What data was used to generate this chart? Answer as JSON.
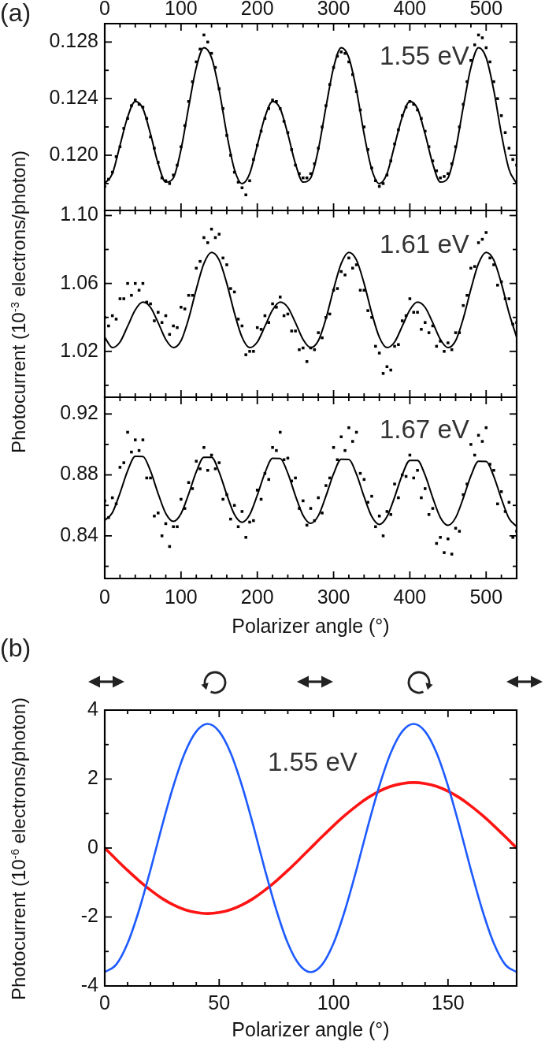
{
  "chart_data": [
    {
      "type": "scatter",
      "annotations": [
        "(a)",
        "1.55 eV"
      ],
      "xlim": [
        0,
        540
      ],
      "x2lim": [
        0,
        540
      ],
      "x2ticks": [
        0,
        {
          "value": 20,
          "label": null
        },
        {
          "value": 40,
          "label": null
        },
        {
          "value": 60,
          "label": null
        },
        {
          "value": 80,
          "label": null
        },
        100,
        {
          "value": 120,
          "label": null
        },
        {
          "value": 140,
          "label": null
        },
        {
          "value": 160,
          "label": null
        },
        {
          "value": 180,
          "label": null
        },
        200,
        {
          "value": 220,
          "label": null
        },
        {
          "value": 240,
          "label": null
        },
        {
          "value": 260,
          "label": null
        },
        {
          "value": 280,
          "label": null
        },
        300,
        {
          "value": 320,
          "label": null
        },
        {
          "value": 340,
          "label": null
        },
        {
          "value": 360,
          "label": null
        },
        {
          "value": 380,
          "label": null
        },
        400,
        {
          "value": 420,
          "label": null
        },
        {
          "value": 440,
          "label": null
        },
        {
          "value": 460,
          "label": null
        },
        {
          "value": 480,
          "label": null
        },
        500,
        {
          "value": 520,
          "label": null
        }
      ],
      "ylim": [
        0.1161,
        0.1293
      ],
      "yticks": [
        {
          "value": 0.118,
          "label": null
        },
        {
          "value": 0.12,
          "label": "0.120"
        },
        {
          "value": 0.122,
          "label": null
        },
        0.124,
        {
          "value": 0.126,
          "label": null
        },
        0.128
      ],
      "marker": "square",
      "series": [
        {
          "type": "scatter",
          "color": "#000000",
          "x": [
            0,
            5,
            10,
            15,
            20,
            25,
            30,
            35,
            40,
            45,
            50,
            55,
            60,
            65,
            70,
            75,
            80,
            85,
            90,
            95,
            100,
            105,
            110,
            115,
            120,
            125,
            130,
            135,
            140,
            145,
            150,
            155,
            160,
            165,
            170,
            175,
            180,
            185,
            190,
            195,
            200,
            205,
            210,
            215,
            220,
            225,
            230,
            235,
            240,
            245,
            250,
            255,
            260,
            265,
            270,
            275,
            280,
            285,
            290,
            295,
            300,
            305,
            310,
            315,
            320,
            325,
            330,
            335,
            340,
            345,
            350,
            355,
            360,
            365,
            370,
            375,
            380,
            385,
            390,
            395,
            400,
            405,
            410,
            415,
            420,
            425,
            430,
            435,
            440,
            445,
            450,
            455,
            460,
            465,
            470,
            475,
            480,
            485,
            490,
            495,
            500,
            505,
            510,
            515,
            520,
            525,
            530,
            535,
            540
          ],
          "values": [
            0.1178,
            0.1183,
            0.1188,
            0.1199,
            0.1206,
            0.1219,
            0.1226,
            0.1235,
            0.1239,
            0.1236,
            0.1234,
            0.1226,
            0.1213,
            0.1205,
            0.1195,
            0.1184,
            0.1182,
            0.118,
            0.1186,
            0.1193,
            0.1206,
            0.1221,
            0.1238,
            0.1252,
            0.1266,
            0.1275,
            0.1285,
            0.128,
            0.1272,
            0.1262,
            0.1247,
            0.1233,
            0.1214,
            0.12,
            0.1188,
            0.1181,
            0.1177,
            0.1172,
            0.1182,
            0.1197,
            0.1207,
            0.1217,
            0.1226,
            0.1233,
            0.1239,
            0.1238,
            0.1233,
            0.1224,
            0.1216,
            0.1204,
            0.1193,
            0.1187,
            0.1184,
            0.1184,
            0.1187,
            0.1194,
            0.1205,
            0.122,
            0.1235,
            0.125,
            0.1262,
            0.127,
            0.1273,
            0.1272,
            0.1266,
            0.1257,
            0.1245,
            0.1232,
            0.122,
            0.1204,
            0.1191,
            0.1182,
            0.1178,
            0.118,
            0.1186,
            0.1196,
            0.1208,
            0.1218,
            0.1228,
            0.1234,
            0.1238,
            0.1236,
            0.1232,
            0.1226,
            0.1217,
            0.1206,
            0.1196,
            0.1189,
            0.1184,
            0.1185,
            0.1187,
            0.1194,
            0.1206,
            0.122,
            0.1236,
            0.1252,
            0.1267,
            0.1278,
            0.1285,
            0.1283,
            0.1276,
            0.1266,
            0.1252,
            0.124,
            0.1228,
            0.1216,
            0.1205,
            0.1197,
            0.1193
          ]
        },
        {
          "type": "line",
          "marker": "none",
          "color": "#000000",
          "x": [
            0,
            10,
            20,
            30,
            40,
            50,
            60,
            70,
            80,
            90,
            100,
            110,
            120,
            130,
            140,
            150,
            160,
            170,
            180,
            190,
            200,
            210,
            220,
            230,
            240,
            250,
            260,
            270,
            280,
            290,
            300,
            310,
            320,
            330,
            340,
            350,
            360,
            370,
            380,
            390,
            400,
            410,
            420,
            430,
            440,
            450,
            460,
            470,
            480,
            490,
            500,
            510,
            520,
            530,
            540
          ],
          "values": [
            0.118,
            0.1187,
            0.1207,
            0.1227,
            0.1238,
            0.1233,
            0.1215,
            0.1194,
            0.1181,
            0.1184,
            0.1204,
            0.1234,
            0.1262,
            0.1276,
            0.1269,
            0.1246,
            0.1215,
            0.119,
            0.118,
            0.1187,
            0.1207,
            0.1227,
            0.1238,
            0.1233,
            0.1215,
            0.1194,
            0.1181,
            0.1184,
            0.1204,
            0.1234,
            0.1262,
            0.1276,
            0.1269,
            0.1246,
            0.1215,
            0.119,
            0.118,
            0.1187,
            0.1207,
            0.1227,
            0.1238,
            0.1233,
            0.1215,
            0.1194,
            0.1181,
            0.1184,
            0.1204,
            0.1234,
            0.1262,
            0.1276,
            0.1269,
            0.1246,
            0.1215,
            0.119,
            0.118
          ]
        }
      ]
    },
    {
      "type": "scatter",
      "annotations": [
        "1.61 eV"
      ],
      "ylabel": "Photocurrent (10$^{-3}$ electrons/photon)",
      "xlim": [
        0,
        540
      ],
      "tick_labels": "y",
      "xticks": [
        0,
        {
          "value": 20,
          "label": null
        },
        {
          "value": 40,
          "label": null
        },
        {
          "value": 60,
          "label": null
        },
        {
          "value": 80,
          "label": null
        },
        100,
        {
          "value": 120,
          "label": null
        },
        {
          "value": 140,
          "label": null
        },
        {
          "value": 160,
          "label": null
        },
        {
          "value": 180,
          "label": null
        },
        200,
        {
          "value": 220,
          "label": null
        },
        {
          "value": 240,
          "label": null
        },
        {
          "value": 260,
          "label": null
        },
        {
          "value": 280,
          "label": null
        },
        300,
        {
          "value": 320,
          "label": null
        },
        {
          "value": 340,
          "label": null
        },
        {
          "value": 360,
          "label": null
        },
        {
          "value": 380,
          "label": null
        },
        400,
        {
          "value": 420,
          "label": null
        },
        {
          "value": 440,
          "label": null
        },
        {
          "value": 460,
          "label": null
        },
        {
          "value": 480,
          "label": null
        },
        500,
        {
          "value": 520,
          "label": null
        }
      ],
      "ylim": [
        0.993,
        1.103
      ],
      "yticks": [
        {
          "value": 1.0,
          "label": null
        },
        1.02,
        {
          "value": 1.04,
          "label": null
        },
        1.06,
        {
          "value": 1.08,
          "label": null
        },
        {
          "value": 1.1,
          "label": "1.10"
        }
      ],
      "marker": "square",
      "series": [
        {
          "type": "scatter",
          "color": "#000000",
          "x": [
            0,
            5,
            10,
            15,
            20,
            25,
            30,
            35,
            40,
            45,
            50,
            55,
            60,
            65,
            70,
            75,
            80,
            85,
            90,
            95,
            100,
            105,
            110,
            115,
            120,
            125,
            130,
            135,
            140,
            145,
            150,
            155,
            160,
            165,
            170,
            175,
            180,
            185,
            190,
            195,
            200,
            205,
            210,
            215,
            220,
            225,
            230,
            235,
            240,
            245,
            250,
            255,
            260,
            265,
            270,
            275,
            280,
            285,
            290,
            295,
            300,
            305,
            310,
            315,
            320,
            325,
            330,
            335,
            340,
            345,
            350,
            355,
            360,
            365,
            370,
            375,
            380,
            385,
            390,
            395,
            400,
            405,
            410,
            415,
            420,
            425,
            430,
            435,
            440,
            445,
            450,
            455,
            460,
            465,
            470,
            475,
            480,
            485,
            490,
            495,
            500,
            505,
            510,
            515,
            520,
            525,
            530,
            535,
            540
          ],
          "values": [
            1.04,
            1.035,
            1.041,
            1.039,
            1.051,
            1.051,
            1.06,
            1.053,
            1.06,
            1.056,
            1.06,
            1.049,
            1.048,
            1.038,
            1.043,
            1.037,
            1.041,
            1.03,
            1.035,
            1.034,
            1.046,
            1.045,
            1.053,
            1.053,
            1.069,
            1.073,
            1.087,
            1.084,
            1.092,
            1.087,
            1.089,
            1.075,
            1.071,
            1.057,
            1.055,
            1.039,
            1.035,
            1.018,
            1.02,
            1.02,
            1.034,
            1.033,
            1.041,
            1.037,
            1.048,
            1.046,
            1.052,
            1.041,
            1.042,
            1.032,
            1.032,
            1.021,
            1.022,
            1.014,
            1.022,
            1.021,
            1.031,
            1.028,
            1.04,
            1.042,
            1.056,
            1.057,
            1.067,
            1.065,
            1.075,
            1.069,
            1.071,
            1.056,
            1.056,
            1.044,
            1.04,
            1.023,
            1.019,
            1.007,
            1.011,
            1.009,
            1.023,
            1.024,
            1.038,
            1.041,
            1.051,
            1.043,
            1.043,
            1.033,
            1.037,
            1.031,
            1.035,
            1.023,
            1.026,
            1.02,
            1.025,
            1.021,
            1.031,
            1.031,
            1.047,
            1.053,
            1.069,
            1.07,
            1.084,
            1.086,
            1.09,
            1.075,
            1.071,
            1.059,
            1.061,
            1.051,
            1.051,
            1.036,
            1.037
          ]
        },
        {
          "type": "line",
          "marker": "none",
          "color": "#000000",
          "x": [
            0,
            10,
            20,
            30,
            40,
            50,
            60,
            70,
            80,
            90,
            100,
            110,
            120,
            130,
            140,
            150,
            160,
            170,
            180,
            190,
            200,
            210,
            220,
            230,
            240,
            250,
            260,
            270,
            280,
            290,
            300,
            310,
            320,
            330,
            340,
            350,
            360,
            370,
            380,
            390,
            400,
            410,
            420,
            430,
            440,
            450,
            460,
            470,
            480,
            490,
            500,
            510,
            520,
            530,
            540
          ],
          "values": [
            1.0283,
            1.0222,
            1.0255,
            1.0348,
            1.0444,
            1.049,
            1.0459,
            1.0369,
            1.027,
            1.0222,
            1.0263,
            1.0393,
            1.0566,
            1.0717,
            1.0783,
            1.0738,
            1.06,
            1.0426,
            1.0283,
            1.0222,
            1.0255,
            1.0348,
            1.0444,
            1.049,
            1.0459,
            1.0369,
            1.027,
            1.0222,
            1.0263,
            1.0393,
            1.0566,
            1.0717,
            1.0783,
            1.0738,
            1.06,
            1.0426,
            1.0283,
            1.0222,
            1.0255,
            1.0348,
            1.0444,
            1.049,
            1.0459,
            1.0369,
            1.027,
            1.0222,
            1.0263,
            1.0393,
            1.0566,
            1.0717,
            1.0783,
            1.0738,
            1.06,
            1.0426,
            1.0283
          ]
        }
      ]
    },
    {
      "type": "scatter",
      "annotations": [
        "1.67 eV"
      ],
      "xlabel": "Polarizer angle (°)",
      "xlim": [
        0,
        540
      ],
      "xticks": [
        0,
        {
          "value": 20,
          "label": null
        },
        {
          "value": 40,
          "label": null
        },
        {
          "value": 60,
          "label": null
        },
        {
          "value": 80,
          "label": null
        },
        100,
        {
          "value": 120,
          "label": null
        },
        {
          "value": 140,
          "label": null
        },
        {
          "value": 160,
          "label": null
        },
        {
          "value": 180,
          "label": null
        },
        200,
        {
          "value": 220,
          "label": null
        },
        {
          "value": 240,
          "label": null
        },
        {
          "value": 260,
          "label": null
        },
        {
          "value": 280,
          "label": null
        },
        300,
        {
          "value": 320,
          "label": null
        },
        {
          "value": 340,
          "label": null
        },
        {
          "value": 360,
          "label": null
        },
        {
          "value": 380,
          "label": null
        },
        400,
        {
          "value": 420,
          "label": null
        },
        {
          "value": 440,
          "label": null
        },
        {
          "value": 460,
          "label": null
        },
        {
          "value": 480,
          "label": null
        },
        500,
        {
          "value": 520,
          "label": null
        }
      ],
      "ylim": [
        0.812,
        0.931
      ],
      "yticks": [
        {
          "value": 0.82,
          "label": null
        },
        0.84,
        {
          "value": 0.86,
          "label": null
        },
        0.88,
        {
          "value": 0.9,
          "label": null
        },
        0.92
      ],
      "marker": "square",
      "series": [
        {
          "type": "scatter",
          "color": "#000000",
          "x": [
            0,
            5,
            10,
            15,
            20,
            25,
            30,
            35,
            40,
            45,
            50,
            55,
            60,
            65,
            70,
            75,
            80,
            85,
            90,
            95,
            100,
            105,
            110,
            115,
            120,
            125,
            130,
            135,
            140,
            145,
            150,
            155,
            160,
            165,
            170,
            175,
            180,
            185,
            190,
            195,
            200,
            205,
            210,
            215,
            220,
            225,
            230,
            235,
            240,
            245,
            250,
            255,
            260,
            265,
            270,
            275,
            280,
            285,
            290,
            295,
            300,
            305,
            310,
            315,
            320,
            325,
            330,
            335,
            340,
            345,
            350,
            355,
            360,
            365,
            370,
            375,
            380,
            385,
            390,
            395,
            400,
            405,
            410,
            415,
            420,
            425,
            430,
            435,
            440,
            445,
            450,
            455,
            460,
            465,
            470,
            475,
            480,
            485,
            490,
            495,
            500,
            505,
            510,
            515,
            520,
            525,
            530,
            535,
            540
          ],
          "values": [
            0.863,
            0.852,
            0.865,
            0.861,
            0.885,
            0.888,
            0.908,
            0.895,
            0.903,
            0.896,
            0.903,
            0.878,
            0.878,
            0.853,
            0.855,
            0.84,
            0.848,
            0.833,
            0.846,
            0.846,
            0.864,
            0.858,
            0.875,
            0.871,
            0.889,
            0.884,
            0.898,
            0.883,
            0.893,
            0.884,
            0.888,
            0.864,
            0.867,
            0.851,
            0.86,
            0.846,
            0.856,
            0.839,
            0.849,
            0.85,
            0.87,
            0.864,
            0.881,
            0.877,
            0.898,
            0.896,
            0.908,
            0.89,
            0.891,
            0.876,
            0.878,
            0.858,
            0.863,
            0.847,
            0.858,
            0.85,
            0.865,
            0.855,
            0.873,
            0.878,
            0.898,
            0.89,
            0.905,
            0.896,
            0.911,
            0.902,
            0.908,
            0.881,
            0.877,
            0.862,
            0.866,
            0.846,
            0.853,
            0.84,
            0.856,
            0.854,
            0.874,
            0.865,
            0.88,
            0.879,
            0.893,
            0.878,
            0.883,
            0.865,
            0.871,
            0.854,
            0.858,
            0.835,
            0.839,
            0.829,
            0.838,
            0.828,
            0.845,
            0.843,
            0.867,
            0.874,
            0.9,
            0.893,
            0.906,
            0.902,
            0.911,
            0.887,
            0.883,
            0.861,
            0.869,
            0.856,
            0.862,
            0.839,
            0.843
          ]
        },
        {
          "type": "line",
          "marker": "none",
          "color": "#000000",
          "x": [
            0,
            10,
            20,
            30,
            40,
            50,
            60,
            70,
            80,
            90,
            100,
            110,
            120,
            130,
            140,
            150,
            160,
            170,
            180,
            190,
            200,
            210,
            220,
            230,
            240,
            250,
            260,
            270,
            280,
            290,
            300,
            310,
            320,
            330,
            340,
            350,
            360,
            370,
            380,
            390,
            400,
            410,
            420,
            430,
            440,
            450,
            460,
            470,
            480,
            490,
            500,
            510,
            520,
            530,
            540
          ],
          "values": [
            0.8502,
            0.8552,
            0.8681,
            0.8827,
            0.8922,
            0.8921,
            0.8825,
            0.8677,
            0.8547,
            0.8495,
            0.8546,
            0.8674,
            0.882,
            0.8915,
            0.8915,
            0.8818,
            0.867,
            0.854,
            0.8489,
            0.8539,
            0.8667,
            0.8813,
            0.8909,
            0.8908,
            0.8811,
            0.8663,
            0.8534,
            0.8482,
            0.8532,
            0.8661,
            0.8807,
            0.8902,
            0.8901,
            0.8805,
            0.8657,
            0.8527,
            0.8475,
            0.8526,
            0.8654,
            0.88,
            0.8895,
            0.8895,
            0.8798,
            0.865,
            0.852,
            0.8469,
            0.8519,
            0.8647,
            0.8793,
            0.8889,
            0.8888,
            0.8791,
            0.8643,
            0.8514,
            0.8462
          ]
        }
      ]
    },
    {
      "type": "line",
      "annotations": [
        "(b)",
        "1.55 eV"
      ],
      "xlabel": "Polarizer angle (°)",
      "ylabel": "Photocurrent (10$^{-6}$ electrons/photon)",
      "xlim": [
        0,
        180
      ],
      "xticks": [
        0,
        {
          "value": 10,
          "label": null
        },
        {
          "value": 20,
          "label": null
        },
        {
          "value": 30,
          "label": null
        },
        {
          "value": 40,
          "label": null
        },
        50,
        {
          "value": 60,
          "label": null
        },
        {
          "value": 70,
          "label": null
        },
        {
          "value": 80,
          "label": null
        },
        {
          "value": 90,
          "label": null
        },
        100,
        {
          "value": 110,
          "label": null
        },
        {
          "value": 120,
          "label": null
        },
        {
          "value": 130,
          "label": null
        },
        {
          "value": 140,
          "label": null
        },
        150,
        {
          "value": 160,
          "label": null
        },
        {
          "value": 170,
          "label": null
        }
      ],
      "ylim": [
        -4,
        4
      ],
      "yticks": [
        -4,
        {
          "value": -3,
          "label": null
        },
        -2,
        {
          "value": -1,
          "label": null
        },
        0,
        {
          "value": 1,
          "label": null
        },
        2,
        {
          "value": 3,
          "label": null
        },
        4
      ],
      "marker": "none",
      "series": [
        {
          "color": "#1e5bff",
          "x": [
            0,
            5,
            10,
            15,
            20,
            25,
            30,
            35,
            40,
            45,
            50,
            55,
            60,
            65,
            70,
            75,
            80,
            85,
            90,
            95,
            100,
            105,
            110,
            115,
            120,
            125,
            130,
            135,
            140,
            145,
            150,
            155,
            160,
            165,
            170,
            175,
            180
          ],
          "values": [
            -3.6,
            -3.38,
            -2.76,
            -1.8,
            -0.63,
            0.63,
            1.8,
            2.76,
            3.38,
            3.6,
            3.38,
            2.76,
            1.8,
            0.63,
            -0.63,
            -1.8,
            -2.76,
            -3.38,
            -3.6,
            -3.38,
            -2.76,
            -1.8,
            -0.63,
            0.63,
            1.8,
            2.76,
            3.38,
            3.6,
            3.38,
            2.76,
            1.8,
            0.63,
            -0.63,
            -1.8,
            -2.76,
            -3.38,
            -3.6
          ]
        },
        {
          "color": "#ff1414",
          "x": [
            0,
            5,
            10,
            15,
            20,
            25,
            30,
            35,
            40,
            45,
            50,
            55,
            60,
            65,
            70,
            75,
            80,
            85,
            90,
            95,
            100,
            105,
            110,
            115,
            120,
            125,
            130,
            135,
            140,
            145,
            150,
            155,
            160,
            165,
            170,
            175,
            180
          ],
          "values": [
            0,
            -0.33,
            -0.65,
            -0.95,
            -1.22,
            -1.46,
            -1.65,
            -1.79,
            -1.87,
            -1.9,
            -1.87,
            -1.79,
            -1.65,
            -1.46,
            -1.22,
            -0.95,
            -0.65,
            -0.33,
            0,
            0.33,
            0.65,
            0.95,
            1.22,
            1.46,
            1.65,
            1.79,
            1.87,
            1.9,
            1.87,
            1.79,
            1.65,
            1.46,
            1.22,
            0.95,
            0.65,
            0.33,
            0
          ]
        }
      ]
    }
  ]
}
